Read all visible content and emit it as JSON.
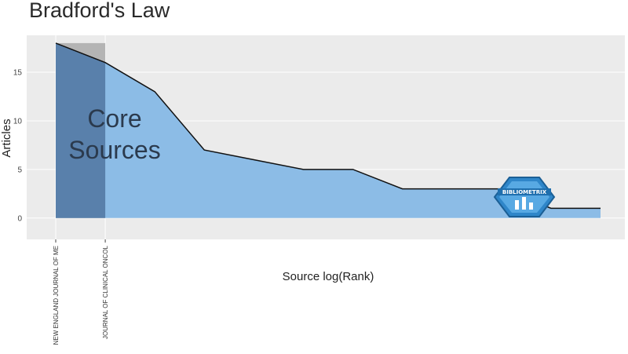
{
  "chart_data": {
    "type": "area",
    "title": "Bradford's Law",
    "xlabel": "Source log(Rank)",
    "ylabel": "Articles",
    "ylim": [
      -2.2,
      18.8
    ],
    "yticks": [
      0,
      5,
      10,
      15
    ],
    "grid": true,
    "x": [
      1,
      2,
      3,
      4,
      5,
      6,
      7,
      8,
      9,
      10,
      11,
      12
    ],
    "values": [
      18,
      16,
      13,
      7,
      6,
      5,
      5,
      3,
      3,
      3,
      1,
      1
    ],
    "labeled_categories": [
      {
        "x": 1,
        "label": "NEW ENGLAND JOURNAL OF ME"
      },
      {
        "x": 2,
        "label": "JOURNAL OF CLINICAL ONCOL"
      }
    ],
    "core_sources": {
      "label_line1": "Core",
      "label_line2": "Sources",
      "x_end": 2,
      "y_top": 18
    },
    "colors": {
      "area": "#8cbce6",
      "core_overlay": "#2f4f7a",
      "core_box": "#b4b4b4",
      "line": "#111111",
      "panel": "#ebebeb",
      "grid": "#ffffff"
    },
    "watermark": "BIBLIOMETRIX"
  }
}
